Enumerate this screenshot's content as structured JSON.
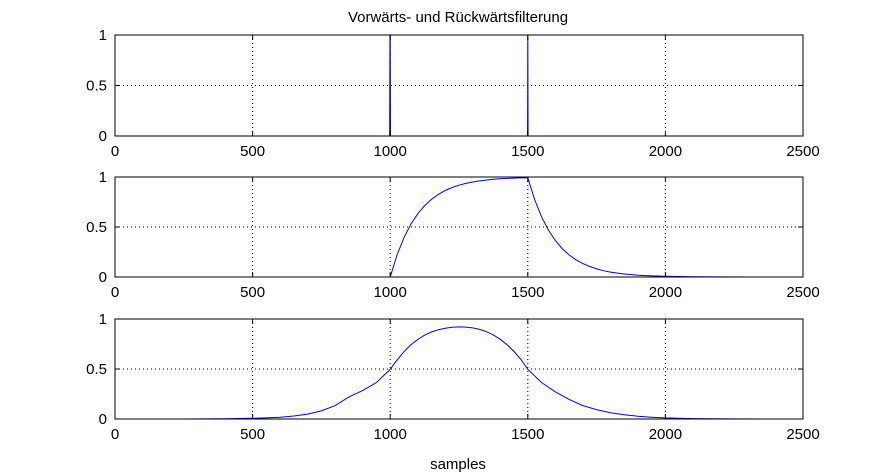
{
  "figure": {
    "title": "Vorwärts- und Rückwärtsfilterung",
    "xlabel": "samples"
  },
  "chart_data": [
    {
      "type": "line",
      "title": "Vorwärts- und Rückwärtsfilterung",
      "xlabel": "",
      "ylabel": "",
      "xlim": [
        0,
        2500
      ],
      "ylim": [
        0,
        1
      ],
      "xticks": [
        0,
        500,
        1000,
        1500,
        2000,
        2500
      ],
      "yticks": [
        0,
        0.5,
        1
      ],
      "xtick_labels": [
        "0",
        "500",
        "1000",
        "1500",
        "2000",
        "2500"
      ],
      "ytick_labels": [
        "0",
        "0.5",
        "1"
      ],
      "grid": true,
      "series": [
        {
          "color": "#0000ff",
          "x": [
            0,
            998,
            999,
            1000,
            1001,
            1002,
            1499,
            1499.5,
            1500,
            1500.5,
            1501,
            1502,
            2500
          ],
          "y": [
            0,
            0,
            1,
            1,
            0,
            0,
            0,
            0.35,
            1,
            0.5,
            0,
            0,
            0
          ]
        }
      ]
    },
    {
      "type": "line",
      "title": "",
      "xlabel": "",
      "ylabel": "",
      "xlim": [
        0,
        2500
      ],
      "ylim": [
        0,
        1
      ],
      "xticks": [
        0,
        500,
        1000,
        1500,
        2000,
        2500
      ],
      "yticks": [
        0,
        0.5,
        1
      ],
      "xtick_labels": [
        "0",
        "500",
        "1000",
        "1500",
        "2000",
        "2500"
      ],
      "ytick_labels": [
        "0",
        "0.5",
        "1"
      ],
      "grid": true,
      "series": [
        {
          "color": "#0000ff",
          "x": [
            0,
            1000,
            1025,
            1050,
            1075,
            1100,
            1125,
            1150,
            1175,
            1200,
            1225,
            1250,
            1275,
            1300,
            1325,
            1350,
            1375,
            1400,
            1425,
            1450,
            1475,
            1500,
            1525,
            1550,
            1575,
            1600,
            1625,
            1650,
            1675,
            1700,
            1725,
            1750,
            1775,
            1800,
            1850,
            1900,
            1950,
            2000,
            2100,
            2200,
            2300,
            2400,
            2500
          ],
          "y": [
            0,
            0,
            0.221,
            0.393,
            0.528,
            0.632,
            0.713,
            0.777,
            0.826,
            0.865,
            0.895,
            0.918,
            0.936,
            0.95,
            0.961,
            0.97,
            0.977,
            0.982,
            0.986,
            0.989,
            0.991,
            0.993,
            0.773,
            0.602,
            0.469,
            0.365,
            0.284,
            0.221,
            0.172,
            0.134,
            0.105,
            0.081,
            0.063,
            0.049,
            0.03,
            0.018,
            0.011,
            0.007,
            0.002,
            0.001,
            0.0,
            0.0,
            0.0
          ]
        }
      ]
    },
    {
      "type": "line",
      "title": "",
      "xlabel": "samples",
      "ylabel": "",
      "xlim": [
        0,
        2500
      ],
      "ylim": [
        0,
        1
      ],
      "xticks": [
        0,
        500,
        1000,
        1500,
        2000,
        2500
      ],
      "yticks": [
        0,
        0.5,
        1
      ],
      "xtick_labels": [
        "0",
        "500",
        "1000",
        "1500",
        "2000",
        "2500"
      ],
      "ytick_labels": [
        "0",
        "0.5",
        "1"
      ],
      "grid": true,
      "series": [
        {
          "color": "#0000ff",
          "x": [
            0,
            250,
            400,
            500,
            550,
            600,
            650,
            700,
            750,
            800,
            850,
            900,
            950,
            1000,
            1025,
            1050,
            1075,
            1100,
            1125,
            1150,
            1175,
            1200,
            1225,
            1250,
            1275,
            1300,
            1325,
            1350,
            1375,
            1400,
            1425,
            1450,
            1475,
            1500,
            1550,
            1600,
            1650,
            1700,
            1750,
            1800,
            1850,
            1900,
            1950,
            2000,
            2100,
            2250,
            2500
          ],
          "y": [
            0,
            0.0,
            0.003,
            0.007,
            0.011,
            0.018,
            0.03,
            0.049,
            0.081,
            0.134,
            0.221,
            0.284,
            0.365,
            0.497,
            0.589,
            0.673,
            0.741,
            0.795,
            0.838,
            0.87,
            0.893,
            0.908,
            0.917,
            0.921,
            0.919,
            0.911,
            0.896,
            0.873,
            0.841,
            0.797,
            0.742,
            0.675,
            0.596,
            0.497,
            0.365,
            0.272,
            0.196,
            0.134,
            0.094,
            0.063,
            0.043,
            0.028,
            0.018,
            0.011,
            0.004,
            0.001,
            0.0
          ]
        }
      ]
    }
  ]
}
